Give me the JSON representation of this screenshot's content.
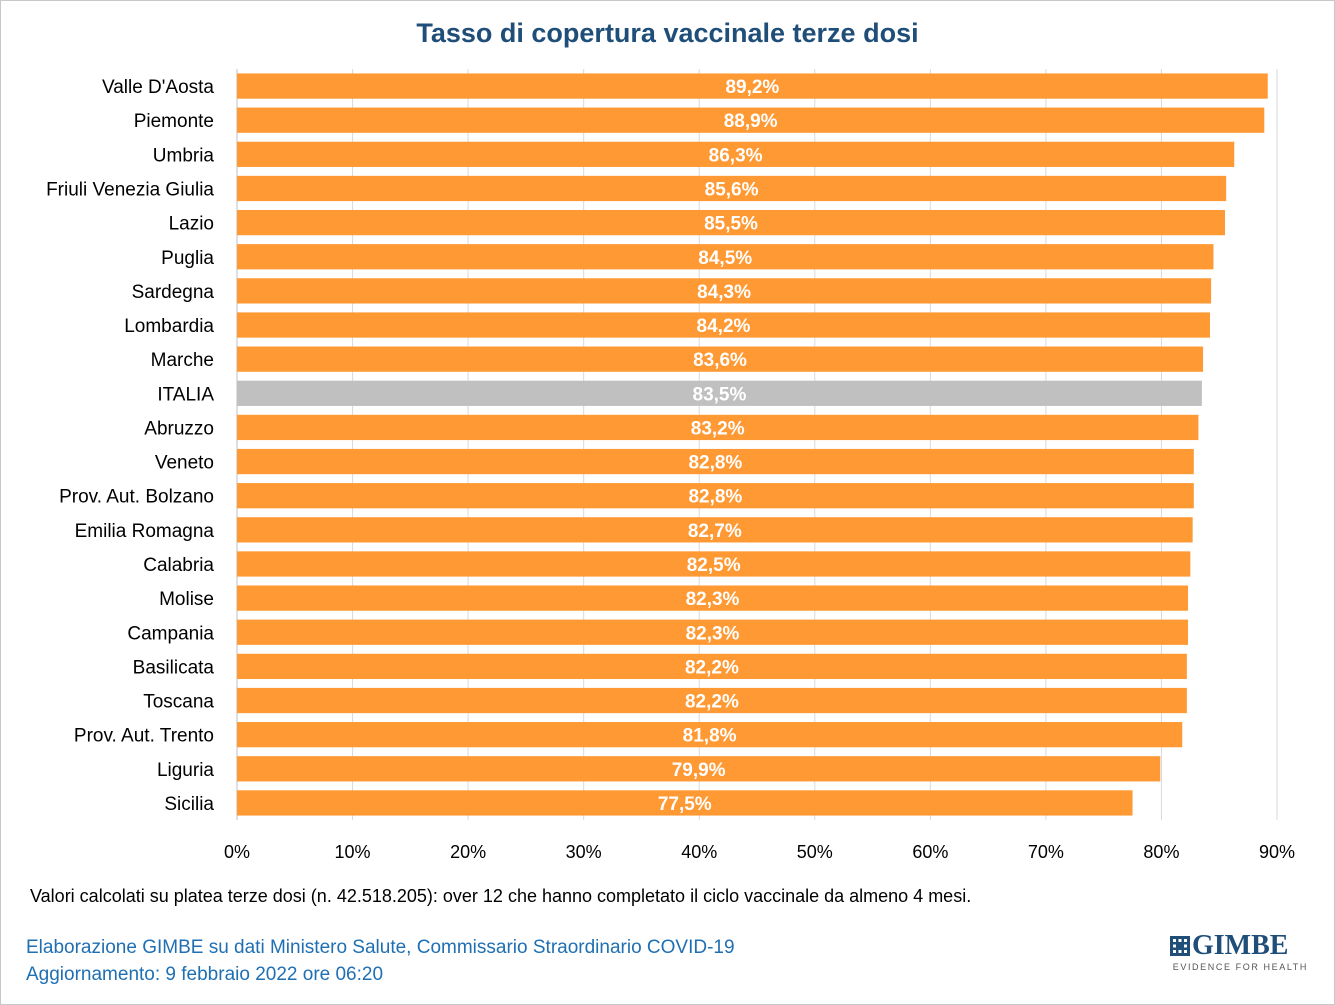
{
  "title": "Tasso di copertura vaccinale terze dosi",
  "footnote": "Valori calcolati su platea terze dosi (n. 42.518.205): over 12 che hanno completato il ciclo vaccinale da almeno 4 mesi.",
  "credit_line1": "Elaborazione GIMBE su dati Ministero Salute, Commissario Straordinario COVID-19",
  "credit_line2": "Aggiornamento: 9 febbraio 2022 ore 06:20",
  "logo": {
    "name": "GIMBE",
    "tagline": "EVIDENCE FOR HEALTH",
    "icon": "gimbe-logo-icon"
  },
  "colors": {
    "bar": "#ff9933",
    "highlight": "#c0c0c0",
    "title": "#1f4e79",
    "credit": "#1f6fb2",
    "grid": "#d9d9d9"
  },
  "chart_data": {
    "type": "bar",
    "orientation": "horizontal",
    "categories": [
      "Valle D'Aosta",
      "Piemonte",
      "Umbria",
      "Friuli Venezia Giulia",
      "Lazio",
      "Puglia",
      "Sardegna",
      "Lombardia",
      "Marche",
      "ITALIA",
      "Abruzzo",
      "Veneto",
      "Prov. Aut. Bolzano",
      "Emilia Romagna",
      "Calabria",
      "Molise",
      "Campania",
      "Basilicata",
      "Toscana",
      "Prov. Aut. Trento",
      "Liguria",
      "Sicilia"
    ],
    "values": [
      89.2,
      88.9,
      86.3,
      85.6,
      85.5,
      84.5,
      84.3,
      84.2,
      83.6,
      83.5,
      83.2,
      82.8,
      82.8,
      82.7,
      82.5,
      82.3,
      82.3,
      82.2,
      82.2,
      81.8,
      79.9,
      77.5
    ],
    "data_labels": [
      "89,2%",
      "88,9%",
      "86,3%",
      "85,6%",
      "85,5%",
      "84,5%",
      "84,3%",
      "84,2%",
      "83,6%",
      "83,5%",
      "83,2%",
      "82,8%",
      "82,8%",
      "82,7%",
      "82,5%",
      "82,3%",
      "82,3%",
      "82,2%",
      "82,2%",
      "81,8%",
      "79,9%",
      "77,5%"
    ],
    "highlight": "ITALIA",
    "xlim": [
      0,
      90
    ],
    "x_ticks": [
      0,
      10,
      20,
      30,
      40,
      50,
      60,
      70,
      80,
      90
    ],
    "x_tick_labels": [
      "0%",
      "10%",
      "20%",
      "30%",
      "40%",
      "50%",
      "60%",
      "70%",
      "80%",
      "90%"
    ],
    "grid": true,
    "legend": false,
    "xlabel": "",
    "ylabel": ""
  }
}
